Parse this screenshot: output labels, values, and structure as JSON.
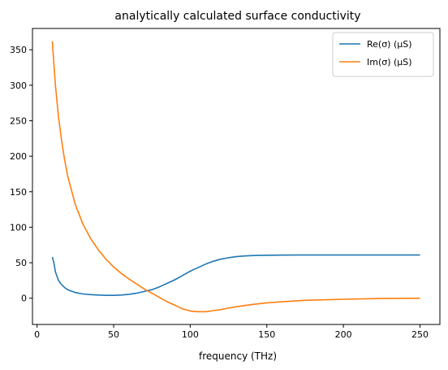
{
  "chart_data": {
    "type": "line",
    "title": "analytically calculated surface conductivity",
    "xlabel": "frequency (THz)",
    "ylabel": "",
    "xlim": [
      -3,
      263
    ],
    "ylim": [
      -37,
      380
    ],
    "xticks": [
      0,
      50,
      100,
      150,
      200,
      250
    ],
    "yticks": [
      0,
      50,
      100,
      150,
      200,
      250,
      300,
      350
    ],
    "grid": false,
    "legend_position": "top-right",
    "series": [
      {
        "name": "Re(σ) (μS)",
        "color": "#1f77b4",
        "x": [
          10,
          11,
          12,
          14,
          16,
          18,
          20,
          25,
          30,
          35,
          40,
          45,
          50,
          55,
          60,
          65,
          70,
          75,
          80,
          85,
          90,
          95,
          100,
          105,
          110,
          115,
          120,
          125,
          130,
          135,
          140,
          145,
          150,
          160,
          170,
          180,
          190,
          200,
          220,
          250
        ],
        "y": [
          58,
          50,
          37,
          25,
          19,
          15,
          12,
          8,
          6,
          5,
          4.5,
          4,
          4,
          4.5,
          5.5,
          7,
          9.5,
          12,
          16,
          21,
          26,
          32,
          38,
          43,
          48,
          52,
          55,
          57,
          58.5,
          59.5,
          60,
          60.3,
          60.5,
          60.7,
          60.8,
          60.8,
          60.8,
          60.8,
          60.8,
          60.8
        ]
      },
      {
        "name": "Im(σ) (μS)",
        "color": "#ff7f0e",
        "x": [
          10,
          11,
          12,
          14,
          16,
          18,
          20,
          25,
          30,
          35,
          40,
          45,
          50,
          55,
          60,
          65,
          70,
          75,
          80,
          85,
          90,
          95,
          100,
          105,
          110,
          115,
          120,
          125,
          130,
          140,
          150,
          160,
          175,
          200,
          225,
          250
        ],
        "y": [
          362,
          330,
          300,
          255,
          222,
          195,
          172,
          132,
          104,
          84,
          68,
          55,
          44,
          35,
          27,
          20,
          13,
          7,
          1,
          -5,
          -10,
          -15,
          -18,
          -19,
          -19,
          -17.5,
          -16,
          -14,
          -12,
          -9,
          -6.5,
          -5,
          -3,
          -1.5,
          -0.5,
          0
        ]
      }
    ]
  }
}
